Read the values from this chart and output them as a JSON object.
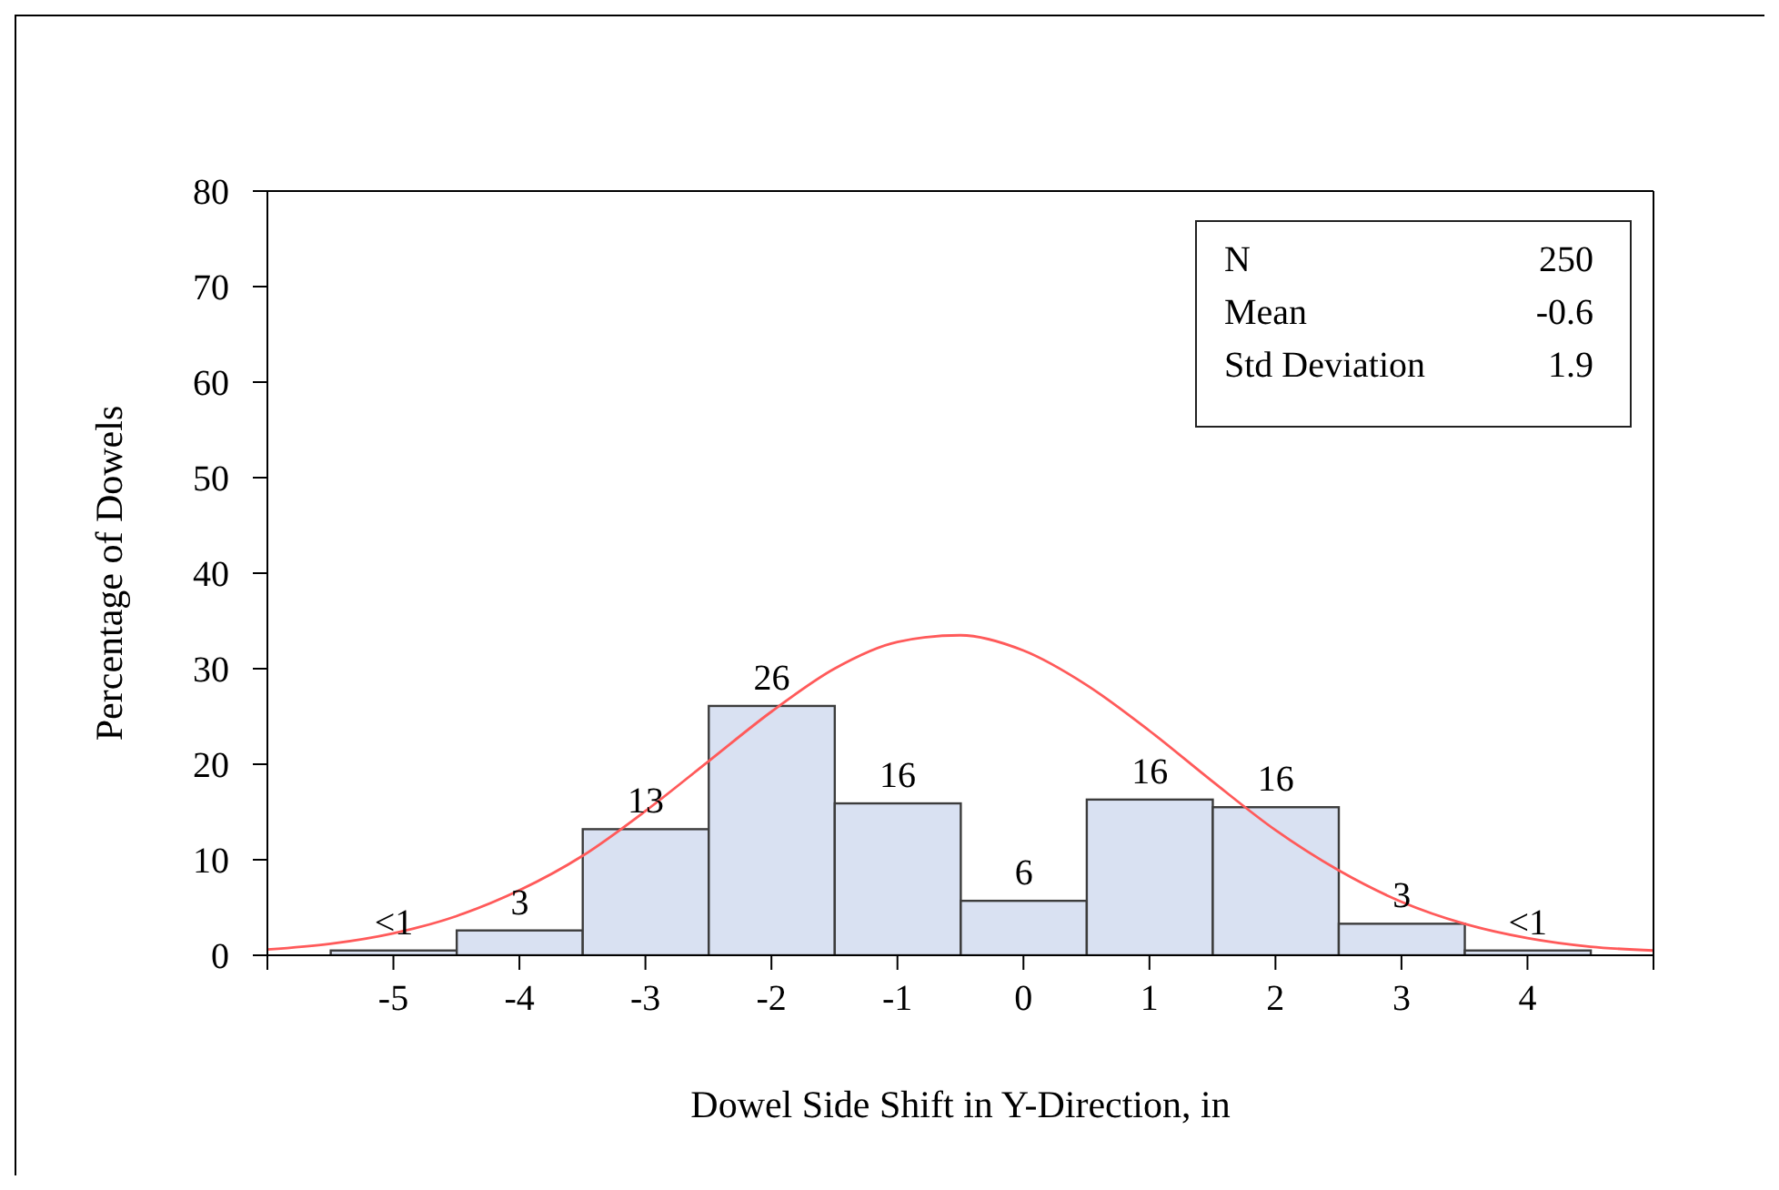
{
  "chart_data": {
    "type": "histogram",
    "xlabel": "Dowel Side Shift in Y-Direction, in",
    "ylabel": "Percentage of Dowels",
    "bins": [
      -5.5,
      -4.5,
      -3.5,
      -2.5,
      -1.5,
      -0.5,
      0.5,
      1.5,
      2.5,
      3.5,
      4.5
    ],
    "series": [
      {
        "values": [
          0.5,
          2.6,
          13.2,
          26.1,
          15.9,
          5.7,
          16.3,
          15.5,
          3.3,
          0.5
        ],
        "color": "#d9e1f2",
        "value_labels": [
          "<1",
          "3",
          "13",
          "26",
          "16",
          "6",
          "16",
          "16",
          "3",
          "<1"
        ]
      },
      {
        "type": "line",
        "color": "#ff5a5a",
        "x": [
          -6,
          -5.5,
          -5,
          -4.5,
          -4,
          -3.5,
          -3,
          -2.5,
          -2,
          -1.5,
          -1,
          -0.5,
          0,
          0.5,
          1,
          1.5,
          2,
          2.5,
          3,
          3.5,
          4,
          4.5,
          5
        ],
        "values": [
          0.6,
          1.2,
          2.3,
          4.1,
          6.8,
          10.4,
          15.1,
          20.3,
          25.5,
          30.0,
          32.8,
          33.5,
          31.9,
          28.3,
          23.5,
          18.2,
          13.1,
          8.9,
          5.6,
          3.3,
          1.8,
          0.9,
          0.5
        ]
      }
    ],
    "xlim": [
      -6,
      5
    ],
    "xticks": [
      {
        "value": -6,
        "label": null
      },
      -5,
      -4,
      -3,
      -2,
      -1,
      0,
      1,
      2,
      3,
      4,
      {
        "value": 5,
        "label": null
      }
    ],
    "ylim": [
      0,
      80
    ],
    "yticks": [
      0,
      10,
      20,
      30,
      40,
      50,
      60,
      70,
      80
    ],
    "annotations": [
      "N 250",
      "Mean -0.6",
      "Std Deviation 1.9"
    ],
    "grid": false
  }
}
